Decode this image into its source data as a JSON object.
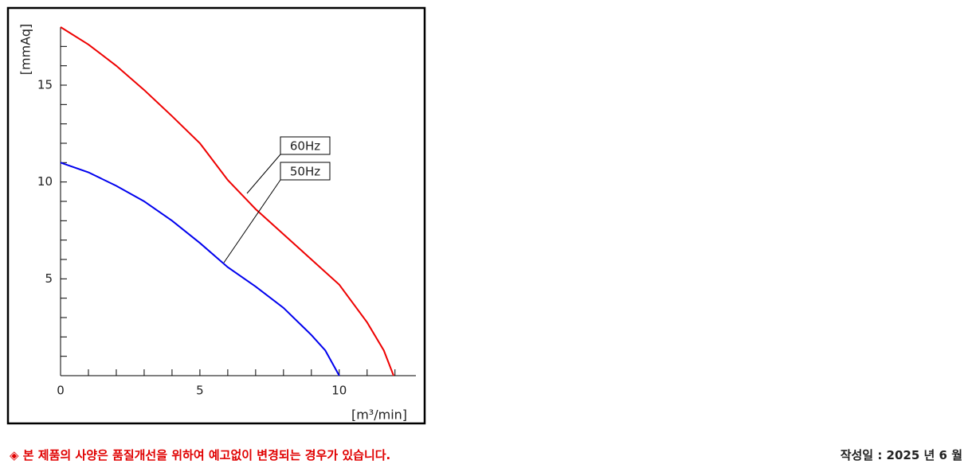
{
  "chart_data": {
    "type": "line",
    "ylabel": "[mmAq]",
    "xlabel": "[m³/min]",
    "xlim": [
      0,
      12.75
    ],
    "ylim": [
      0,
      18
    ],
    "xticks": [
      0,
      5,
      10
    ],
    "yticks": [
      5,
      10,
      15
    ],
    "xminor_ticks": [
      1,
      2,
      3,
      4,
      6,
      7,
      8,
      9,
      11,
      12
    ],
    "yminor_ticks": [
      1,
      2,
      3,
      4,
      6,
      7,
      8,
      9,
      11,
      12,
      13,
      14,
      16,
      17
    ],
    "series": [
      {
        "name": "60Hz",
        "color": "#ee0000",
        "x": [
          0,
          1,
          2,
          3,
          4,
          5,
          6,
          7,
          8,
          9,
          10,
          11,
          11.6,
          11.95
        ],
        "values": [
          18,
          17.1,
          16,
          14.75,
          13.4,
          12,
          10.1,
          8.6,
          7.3,
          6,
          4.7,
          2.75,
          1.3,
          0
        ]
      },
      {
        "name": "50Hz",
        "color": "#0000ee",
        "x": [
          0,
          1,
          2,
          3,
          4,
          5,
          6,
          7,
          8,
          9,
          9.5,
          10
        ],
        "values": [
          11,
          10.5,
          9.8,
          9,
          8,
          6.85,
          5.6,
          4.6,
          3.5,
          2.1,
          1.3,
          0
        ]
      }
    ]
  },
  "footer": {
    "notice": "◈ 본 제품의 사양은 품질개선을 위하여 예고없이 변경되는 경우가 있습니다.",
    "date": "작성일 : 2025 년 6 월"
  }
}
